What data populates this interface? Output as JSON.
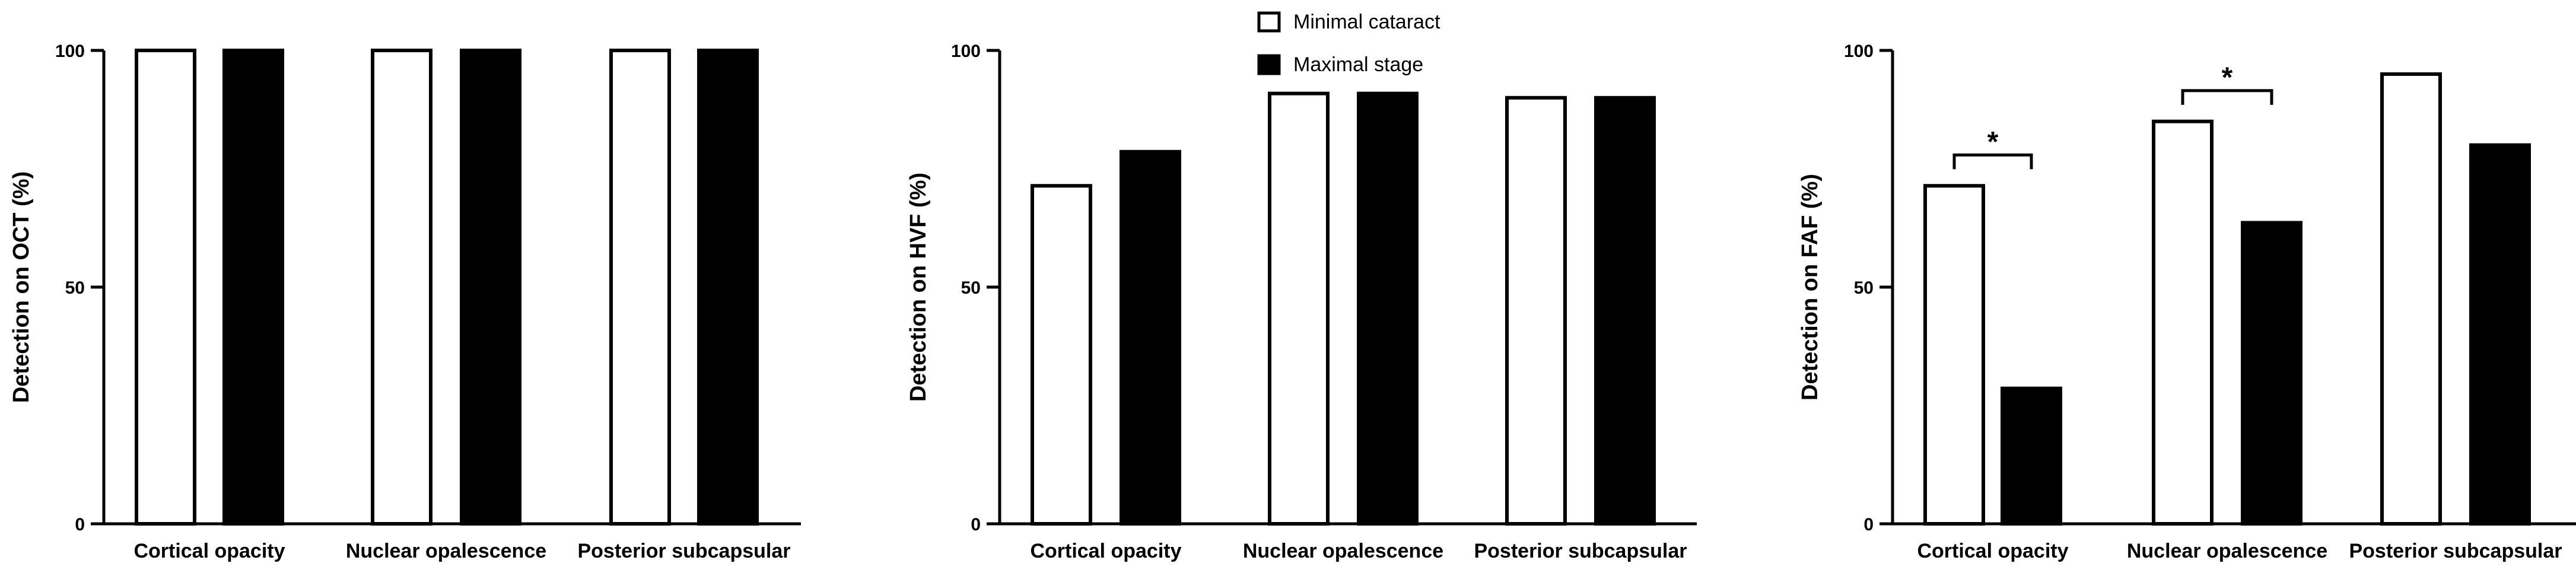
{
  "legend": [
    {
      "label": "Minimal cataract",
      "fill": "#ffffff"
    },
    {
      "label": "Maximal stage",
      "fill": "#000000"
    }
  ],
  "colors": {
    "minimal": "#ffffff",
    "maximal": "#000000",
    "stroke": "#000000"
  },
  "chart_data": [
    {
      "type": "bar",
      "title": "",
      "xlabel": "",
      "ylabel": "Detection on OCT (%)",
      "ylim": [
        0,
        100
      ],
      "yticks": [
        0,
        50,
        100
      ],
      "categories": [
        "Cortical opacity",
        "Nuclear opalescence",
        "Posterior subcapsular"
      ],
      "series": [
        {
          "name": "Minimal cataract",
          "values": [
            100,
            100,
            100
          ]
        },
        {
          "name": "Maximal stage",
          "values": [
            100,
            100,
            100
          ]
        }
      ],
      "annotations": []
    },
    {
      "type": "bar",
      "title": "",
      "xlabel": "",
      "ylabel": "Detection on HVF (%)",
      "ylim": [
        0,
        100
      ],
      "yticks": [
        0,
        50,
        100
      ],
      "categories": [
        "Cortical opacity",
        "Nuclear opalescence",
        "Posterior subcapsular"
      ],
      "series": [
        {
          "name": "Minimal cataract",
          "values": [
            71.4,
            90.9,
            90
          ]
        },
        {
          "name": "Maximal stage",
          "values": [
            78.6,
            90.9,
            90
          ]
        }
      ],
      "annotations": []
    },
    {
      "type": "bar",
      "title": "",
      "xlabel": "",
      "ylabel": "Detection on FAF (%)",
      "ylim": [
        0,
        100
      ],
      "yticks": [
        0,
        50,
        100
      ],
      "categories": [
        "Cortical opacity",
        "Nuclear opalescence",
        "Posterior subcapsular"
      ],
      "series": [
        {
          "name": "Minimal cataract",
          "values": [
            71.4,
            85,
            95
          ]
        },
        {
          "name": "Maximal stage",
          "values": [
            28.6,
            63.6,
            80
          ]
        }
      ],
      "annotations": [
        {
          "category_index": 0,
          "text": "*"
        },
        {
          "category_index": 1,
          "text": "*"
        }
      ]
    }
  ]
}
